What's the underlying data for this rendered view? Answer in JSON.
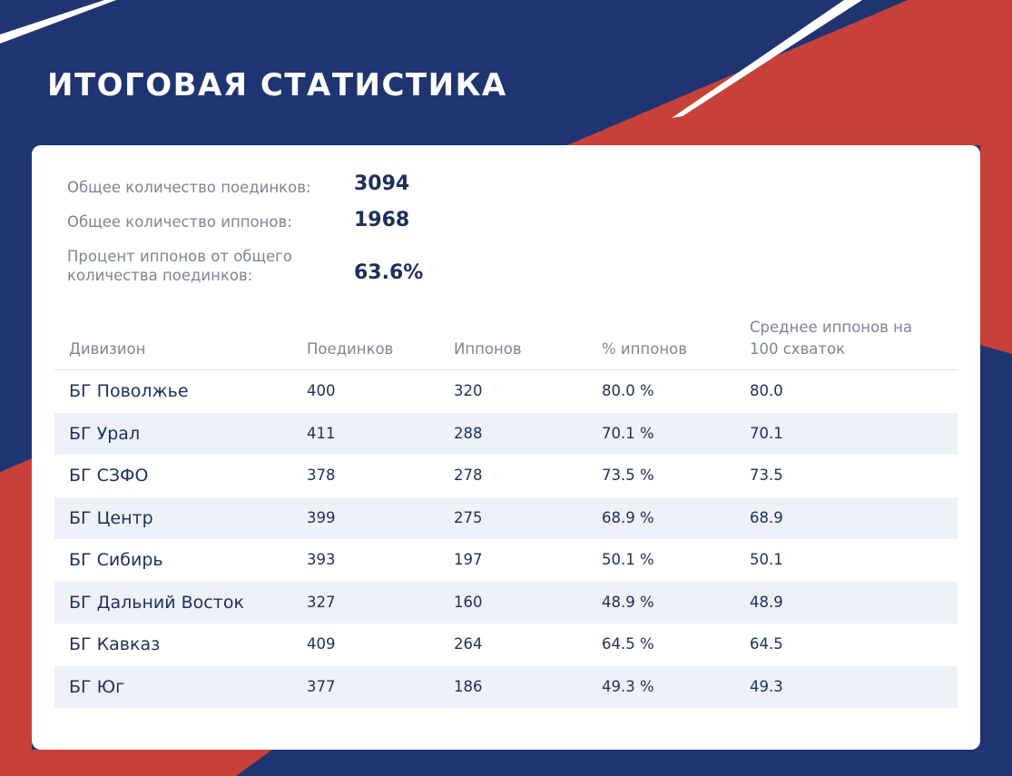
{
  "header": {
    "title": "ИТОГОВАЯ СТАТИСТИКА"
  },
  "summary": {
    "rows": [
      {
        "label": "Общее количество поединков:",
        "value": "3094"
      },
      {
        "label": "Общее количество иппонов:",
        "value": "1968"
      },
      {
        "label": "Процент иппонов от общего количества поединков:",
        "value": "63.6%"
      }
    ]
  },
  "table": {
    "columns": [
      "Дивизион",
      "Поединков",
      "Иппонов",
      "% иппонов",
      "Среднее иппонов на 100 схваток"
    ],
    "rows": [
      [
        "БГ Поволжье",
        "400",
        "320",
        "80.0 %",
        "80.0"
      ],
      [
        "БГ Урал",
        "411",
        "288",
        "70.1 %",
        "70.1"
      ],
      [
        "БГ СЗФО",
        "378",
        "278",
        "73.5 %",
        "73.5"
      ],
      [
        "БГ Центр",
        "399",
        "275",
        "68.9 %",
        "68.9"
      ],
      [
        "БГ Сибирь",
        "393",
        "197",
        "50.1 %",
        "50.1"
      ],
      [
        "БГ Дальний Восток",
        "327",
        "160",
        "48.9 %",
        "48.9"
      ],
      [
        "БГ Кавказ",
        "409",
        "264",
        "64.5 %",
        "64.5"
      ],
      [
        "БГ Юг",
        "377",
        "186",
        "49.3 %",
        "49.3"
      ]
    ]
  }
}
